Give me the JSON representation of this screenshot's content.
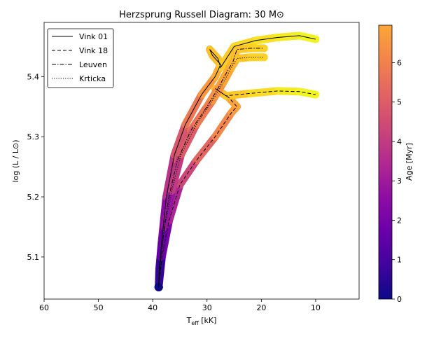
{
  "chart_data": {
    "type": "line",
    "title": "Herzsprung Russell Diagram: 30 M⊙",
    "xlabel": "T",
    "xlabel_sub": "eff",
    "xlabel_unit": " [kK]",
    "ylabel": "log (L / L⊙)",
    "xlim": [
      60,
      2
    ],
    "ylim": [
      5.03,
      5.49
    ],
    "x_ticks": [
      60,
      50,
      40,
      30,
      20,
      10
    ],
    "y_ticks": [
      5.1,
      5.2,
      5.3,
      5.4
    ],
    "x_tick_labels": [
      "60",
      "50",
      "40",
      "30",
      "20",
      "10"
    ],
    "y_tick_labels": [
      "5.1",
      "5.2",
      "5.3",
      "5.4"
    ],
    "legend_position": "top-left",
    "colorbar": {
      "label": "Age [Myr]",
      "colormap": "plasma",
      "range": [
        0,
        6.95
      ],
      "ticks": [
        0,
        1,
        2,
        3,
        4,
        5,
        6
      ],
      "tick_labels": [
        "0",
        "1",
        "2",
        "3",
        "4",
        "5",
        "6"
      ]
    },
    "series": [
      {
        "name": "Vink 01",
        "dash": "solid",
        "points": [
          [
            38.9,
            5.05,
            0.0
          ],
          [
            38.8,
            5.08,
            0.5
          ],
          [
            38.3,
            5.13,
            1.5
          ],
          [
            37.5,
            5.2,
            2.5
          ],
          [
            36.0,
            5.27,
            3.5
          ],
          [
            34.0,
            5.32,
            4.2
          ],
          [
            31.0,
            5.37,
            5.0
          ],
          [
            28.5,
            5.4,
            5.6
          ],
          [
            27.5,
            5.42,
            5.8
          ],
          [
            29.0,
            5.435,
            5.9
          ],
          [
            29.5,
            5.445,
            6.0
          ],
          [
            28.0,
            5.43,
            6.05
          ],
          [
            27.5,
            5.415,
            6.1
          ],
          [
            25.0,
            5.45,
            6.3
          ],
          [
            21.0,
            5.46,
            6.5
          ],
          [
            17.0,
            5.465,
            6.65
          ],
          [
            13.0,
            5.468,
            6.8
          ],
          [
            10.0,
            5.462,
            6.9
          ]
        ]
      },
      {
        "name": "Vink 18",
        "dash": "dashed",
        "points": [
          [
            38.9,
            5.05,
            0.0
          ],
          [
            38.3,
            5.1,
            1.2
          ],
          [
            37.0,
            5.16,
            2.2
          ],
          [
            35.0,
            5.22,
            3.1
          ],
          [
            32.0,
            5.26,
            3.8
          ],
          [
            28.5,
            5.3,
            4.6
          ],
          [
            25.5,
            5.34,
            5.2
          ],
          [
            24.5,
            5.35,
            5.4
          ],
          [
            26.0,
            5.365,
            5.6
          ],
          [
            28.5,
            5.38,
            5.8
          ],
          [
            26.5,
            5.368,
            6.0
          ],
          [
            22.0,
            5.372,
            6.3
          ],
          [
            17.0,
            5.376,
            6.6
          ],
          [
            13.0,
            5.375,
            6.8
          ],
          [
            10.0,
            5.37,
            6.9
          ]
        ]
      },
      {
        "name": "Leuven",
        "dash": "dashdot",
        "points": [
          [
            38.9,
            5.05,
            0.0
          ],
          [
            38.6,
            5.09,
            0.8
          ],
          [
            38.0,
            5.14,
            1.6
          ],
          [
            37.0,
            5.2,
            2.5
          ],
          [
            35.5,
            5.26,
            3.4
          ],
          [
            33.0,
            5.31,
            4.1
          ],
          [
            30.0,
            5.35,
            4.8
          ],
          [
            28.0,
            5.38,
            5.3
          ],
          [
            26.5,
            5.405,
            5.6
          ],
          [
            25.2,
            5.425,
            5.8
          ],
          [
            24.5,
            5.445,
            6.0
          ],
          [
            22.0,
            5.447,
            6.2
          ],
          [
            19.5,
            5.447,
            6.4
          ]
        ]
      },
      {
        "name": "Krticka",
        "dash": "dotted",
        "points": [
          [
            38.9,
            5.05,
            0.0
          ],
          [
            38.5,
            5.1,
            1.0
          ],
          [
            37.8,
            5.15,
            1.8
          ],
          [
            36.5,
            5.21,
            2.7
          ],
          [
            34.8,
            5.27,
            3.6
          ],
          [
            32.0,
            5.32,
            4.3
          ],
          [
            29.0,
            5.36,
            5.0
          ],
          [
            27.0,
            5.39,
            5.4
          ],
          [
            25.5,
            5.415,
            5.7
          ],
          [
            24.5,
            5.43,
            5.95
          ],
          [
            22.0,
            5.432,
            6.2
          ],
          [
            19.5,
            5.432,
            6.4
          ]
        ]
      }
    ]
  }
}
